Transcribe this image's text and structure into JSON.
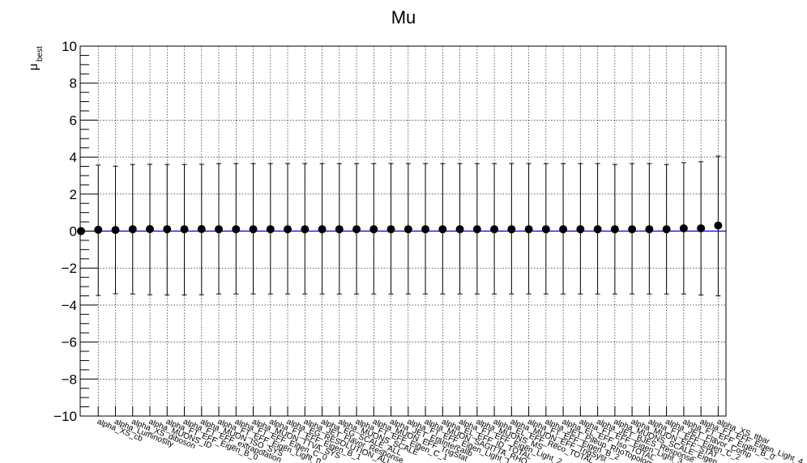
{
  "chart_data": {
    "type": "scatter",
    "title": "Mu",
    "ylabel_main": "μ",
    "ylabel_sub": "best",
    "ylim": [
      -10,
      10
    ],
    "y_ticks": [
      -10,
      -8,
      -6,
      -4,
      -2,
      0,
      2,
      4,
      6,
      8,
      10
    ],
    "y_tick_labels": [
      "−10",
      "−8",
      "−6",
      "−4",
      "−2",
      "0",
      "2",
      "4",
      "6",
      "8",
      "10"
    ],
    "grid": true,
    "reference_line_y": 0,
    "reference_line_color": "#0000cc",
    "marker_color": "#000000",
    "series": [
      {
        "values": [
          0.0,
          0.07,
          0.06,
          0.1,
          0.11,
          0.1,
          0.1,
          0.11,
          0.1,
          0.1,
          0.1,
          0.1,
          0.1,
          0.1,
          0.1,
          0.1,
          0.1,
          0.1,
          0.1,
          0.1,
          0.1,
          0.1,
          0.1,
          0.1,
          0.1,
          0.1,
          0.1,
          0.1,
          0.1,
          0.1,
          0.1,
          0.1,
          0.1,
          0.1,
          0.1,
          0.15,
          0.15,
          0.3
        ],
        "err_up": [
          0,
          3.5,
          3.45,
          3.5,
          3.5,
          3.5,
          3.5,
          3.5,
          3.55,
          3.55,
          3.55,
          3.55,
          3.55,
          3.55,
          3.55,
          3.55,
          3.55,
          3.55,
          3.55,
          3.55,
          3.55,
          3.55,
          3.55,
          3.55,
          3.55,
          3.55,
          3.55,
          3.55,
          3.55,
          3.55,
          3.55,
          3.5,
          3.55,
          3.55,
          3.5,
          3.55,
          3.6,
          3.75
        ],
        "err_down": [
          0,
          3.55,
          3.45,
          3.5,
          3.55,
          3.55,
          3.55,
          3.55,
          3.5,
          3.5,
          3.5,
          3.5,
          3.5,
          3.5,
          3.5,
          3.5,
          3.5,
          3.5,
          3.5,
          3.5,
          3.5,
          3.5,
          3.5,
          3.5,
          3.5,
          3.5,
          3.5,
          3.5,
          3.5,
          3.5,
          3.5,
          3.5,
          3.5,
          3.5,
          3.5,
          3.55,
          3.6,
          3.8
        ]
      }
    ],
    "categories": [
      "",
      "alpha_XS_cb",
      "alpha_Luminosity",
      "alpha_XS_diboson",
      "alpha_MUONS_ID",
      "alpha_FT_EFF_Eigen_B_0",
      "alpha_FT_EFF_extrapolation",
      "alpha_MUON_ISO_SYS",
      "alpha_FT_EFF_Eigen_Light_0",
      "alpha_FT_EFF_Eigen_C_0",
      "alpha_MUON_TTVA_SYS",
      "alpha_FT_EFF_Eigen_B_1",
      "alpha_EG_RESOLUTION_ALL",
      "alpha_JET_Flavor_Response",
      "alpha_EG_SCALE_ALL",
      "alpha_MUONS_SCALE",
      "alpha_FT_EFF_Eigen_C_1",
      "alpha_MUON_EFF_TrigStat",
      "alpha_JET_EtaIntercalib",
      "alpha_FT_EFF_Eigen_Light_1",
      "alpha_MUON_SAGITTA_RHO",
      "alpha_EL_EFF_ID_TOTAL",
      "alpha_FT_EFF_Eigen_Light_2",
      "alpha_MUONS_MS",
      "alpha_EL_EFF_Reco_TOTAL",
      "alpha_MUON_EFF_TrigSyst",
      "alpha_FT_EFF_Eigen_B_2",
      "alpha_JET_Pileup_RhoTopology",
      "alpha_EL_EFF_Iso_TOTAL",
      "alpha_FT_EFF_Eigen_Light_3",
      "alpha_JET_BJES_Response",
      "alpha_MUONS_SCALE_Eigen",
      "alpha_MUON_EFF_STAT",
      "alpha_FT_EFF_Eigen_C_2",
      "alpha_JET_Flavor_Comp",
      "alpha_FT_EFF_Eigen_B_0",
      "alpha_FT_EFF_Eigen_Light_4",
      "alpha_XS_ttbar"
    ]
  }
}
